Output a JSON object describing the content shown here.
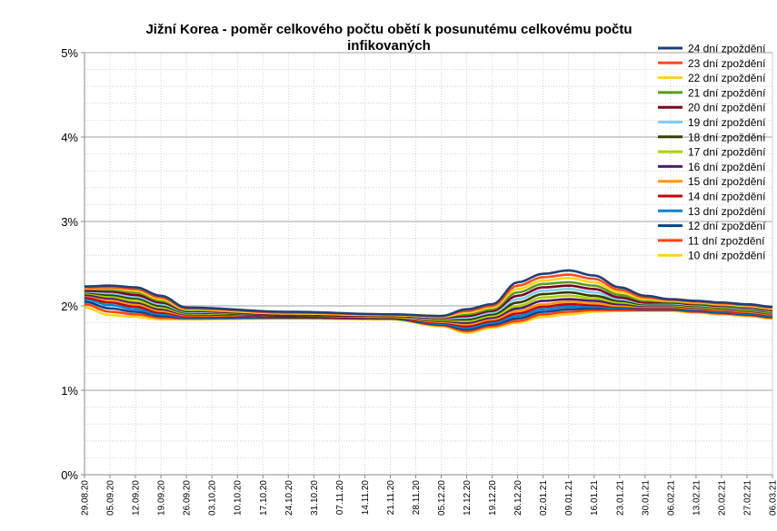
{
  "chart_data": {
    "type": "line",
    "title": "Jižní Korea - poměr celkového počtu obětí k posunutému celkovému počtu infikovaných",
    "title_lines": [
      "Jižní Korea - poměr celkového počtu obětí k posunutému celkovému počtu",
      "infikovaných"
    ],
    "xlabel": "",
    "ylabel": "",
    "ylim": [
      0,
      5
    ],
    "y_ticks": [
      0,
      1,
      2,
      3,
      4,
      5
    ],
    "y_tick_labels": [
      "0%",
      "1%",
      "2%",
      "3%",
      "4%",
      "5%"
    ],
    "x_tick_labels": [
      "29.08.20",
      "05.09.20",
      "12.09.20",
      "19.09.20",
      "26.09.20",
      "03.10.20",
      "10.10.20",
      "17.10.20",
      "24.10.20",
      "31.10.20",
      "07.11.20",
      "14.11.20",
      "21.11.20",
      "28.11.20",
      "05.12.20",
      "12.12.20",
      "19.12.20",
      "26.12.20",
      "02.01.21",
      "09.01.21",
      "16.01.21",
      "23.01.21",
      "30.01.21",
      "06.02.21",
      "13.02.21",
      "20.02.21",
      "27.02.21",
      "06.03.21"
    ],
    "x_index_per_tick": 7,
    "x_count": 190,
    "grid": true,
    "legend_position": "right",
    "anchor_days": [
      0,
      7,
      14,
      21,
      28,
      56,
      84,
      98,
      105,
      112,
      119,
      126,
      133,
      140,
      147,
      154,
      161,
      168,
      175,
      182,
      189
    ],
    "series": [
      {
        "name": "24 dní zpoždění",
        "color": "#1f3f77",
        "values": [
          2.23,
          2.24,
          2.22,
          2.12,
          1.98,
          1.93,
          1.9,
          1.88,
          1.96,
          2.02,
          2.28,
          2.38,
          2.42,
          2.36,
          2.22,
          2.12,
          2.08,
          2.06,
          2.04,
          2.02,
          1.99
        ]
      },
      {
        "name": "23 dní zpoždění",
        "color": "#ff4b1f",
        "values": [
          2.22,
          2.22,
          2.2,
          2.1,
          1.97,
          1.92,
          1.9,
          1.88,
          1.94,
          2.0,
          2.24,
          2.34,
          2.37,
          2.32,
          2.19,
          2.1,
          2.07,
          2.05,
          2.03,
          2.01,
          1.98
        ]
      },
      {
        "name": "22 dní zpoždění",
        "color": "#ffd320",
        "values": [
          2.21,
          2.21,
          2.18,
          2.08,
          1.96,
          1.91,
          1.89,
          1.87,
          1.92,
          1.98,
          2.2,
          2.3,
          2.33,
          2.28,
          2.16,
          2.08,
          2.06,
          2.04,
          2.02,
          2.0,
          1.97
        ]
      },
      {
        "name": "21 dní zpoždění",
        "color": "#579d1c",
        "values": [
          2.2,
          2.19,
          2.16,
          2.06,
          1.95,
          1.91,
          1.89,
          1.87,
          1.9,
          1.96,
          2.16,
          2.26,
          2.28,
          2.24,
          2.13,
          2.06,
          2.05,
          2.03,
          2.01,
          1.99,
          1.96
        ]
      },
      {
        "name": "20 dní zpoždění",
        "color": "#7e0021",
        "values": [
          2.18,
          2.17,
          2.13,
          2.04,
          1.94,
          1.9,
          1.88,
          1.86,
          1.88,
          1.94,
          2.12,
          2.22,
          2.24,
          2.2,
          2.1,
          2.04,
          2.04,
          2.02,
          2.0,
          1.98,
          1.95
        ]
      },
      {
        "name": "19 dní zpoždění",
        "color": "#83caff",
        "values": [
          2.17,
          2.15,
          2.11,
          2.02,
          1.93,
          1.9,
          1.88,
          1.85,
          1.86,
          1.92,
          2.08,
          2.18,
          2.2,
          2.16,
          2.08,
          2.03,
          2.03,
          2.01,
          1.99,
          1.97,
          1.94
        ]
      },
      {
        "name": "18 dní zpoždění",
        "color": "#314004",
        "values": [
          2.16,
          2.13,
          2.09,
          2.0,
          1.92,
          1.89,
          1.88,
          1.84,
          1.84,
          1.9,
          2.04,
          2.14,
          2.16,
          2.12,
          2.06,
          2.02,
          2.02,
          2.0,
          1.98,
          1.96,
          1.93
        ]
      },
      {
        "name": "17 dní zpoždění",
        "color": "#aecf00",
        "values": [
          2.15,
          2.11,
          2.06,
          1.98,
          1.91,
          1.89,
          1.87,
          1.83,
          1.82,
          1.88,
          2.0,
          2.1,
          2.12,
          2.09,
          2.04,
          2.01,
          2.01,
          1.99,
          1.97,
          1.95,
          1.92
        ]
      },
      {
        "name": "16 dní zpoždění",
        "color": "#4b1f6f",
        "values": [
          2.13,
          2.09,
          2.04,
          1.96,
          1.9,
          1.88,
          1.87,
          1.82,
          1.8,
          1.86,
          1.97,
          2.06,
          2.08,
          2.06,
          2.02,
          2.0,
          2.0,
          1.98,
          1.96,
          1.94,
          1.91
        ]
      },
      {
        "name": "15 dní zpoždění",
        "color": "#ff950e",
        "values": [
          2.12,
          2.07,
          2.02,
          1.94,
          1.89,
          1.88,
          1.87,
          1.81,
          1.78,
          1.84,
          1.94,
          2.02,
          2.05,
          2.03,
          2.0,
          1.99,
          1.99,
          1.97,
          1.95,
          1.93,
          1.9
        ]
      },
      {
        "name": "14 dní zpoždění",
        "color": "#c5000b",
        "values": [
          2.1,
          2.04,
          1.99,
          1.92,
          1.88,
          1.87,
          1.86,
          1.8,
          1.76,
          1.82,
          1.91,
          1.99,
          2.02,
          2.01,
          1.99,
          1.98,
          1.98,
          1.96,
          1.94,
          1.92,
          1.89
        ]
      },
      {
        "name": "13 dní zpoždění",
        "color": "#0084d1",
        "values": [
          2.08,
          2.01,
          1.96,
          1.9,
          1.87,
          1.87,
          1.86,
          1.79,
          1.74,
          1.8,
          1.88,
          1.96,
          1.99,
          1.99,
          1.98,
          1.97,
          1.97,
          1.95,
          1.93,
          1.91,
          1.88
        ]
      },
      {
        "name": "12 dní zpoždění",
        "color": "#004586",
        "values": [
          2.05,
          1.97,
          1.93,
          1.88,
          1.86,
          1.86,
          1.85,
          1.78,
          1.72,
          1.78,
          1.85,
          1.93,
          1.96,
          1.97,
          1.97,
          1.96,
          1.96,
          1.94,
          1.92,
          1.9,
          1.87
        ]
      },
      {
        "name": "11 dní zpoždění",
        "color": "#ff420e",
        "values": [
          2.02,
          1.93,
          1.9,
          1.86,
          1.85,
          1.86,
          1.85,
          1.77,
          1.7,
          1.76,
          1.82,
          1.9,
          1.93,
          1.95,
          1.95,
          1.95,
          1.95,
          1.93,
          1.91,
          1.89,
          1.86
        ]
      },
      {
        "name": "10 dní zpoždění",
        "color": "#ffd320",
        "values": [
          1.98,
          1.89,
          1.87,
          1.84,
          1.84,
          1.85,
          1.84,
          1.76,
          1.68,
          1.74,
          1.8,
          1.87,
          1.9,
          1.93,
          1.94,
          1.94,
          1.94,
          1.92,
          1.9,
          1.88,
          1.85
        ]
      }
    ]
  }
}
